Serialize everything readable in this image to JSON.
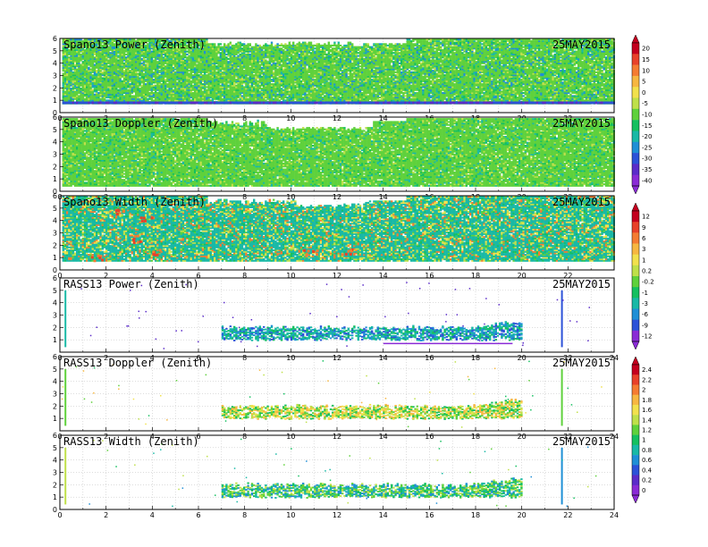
{
  "chart_data": [
    {
      "type": "heatmap",
      "title": "Spano13 Power (Zenith)",
      "date": "25MAY2015",
      "x_ticks": [
        "0",
        "2",
        "4",
        "6",
        "8",
        "10",
        "12",
        "14",
        "16",
        "18",
        "20",
        "22"
      ],
      "xlim": [
        0,
        24
      ],
      "y_ticks": [
        "0",
        "1",
        "2",
        "3",
        "4",
        "5",
        "6"
      ],
      "ylim": [
        0,
        6
      ],
      "colorscale": "power",
      "coverage": [
        [
          0.1,
          24
        ]
      ],
      "layer_top": 5.5,
      "band_y": [
        0.7,
        5.9
      ],
      "dominant": "green-cyan",
      "grid": true
    },
    {
      "type": "heatmap",
      "title": "Spano13 Doppler (Zenith)",
      "date": "25MAY2015",
      "x_ticks": [
        "0",
        "2",
        "4",
        "6",
        "8",
        "10",
        "12",
        "14",
        "16",
        "18",
        "20",
        "22"
      ],
      "xlim": [
        0,
        24
      ],
      "y_ticks": [
        "0",
        "1",
        "2",
        "3",
        "4",
        "5",
        "6"
      ],
      "ylim": [
        0,
        6
      ],
      "colorscale": "power",
      "coverage": [
        [
          0.1,
          24
        ]
      ],
      "band_y": [
        0.4,
        5.9
      ],
      "dominant": "green",
      "grid": true
    },
    {
      "type": "heatmap",
      "title": "Spano13 Width (Zenith)",
      "date": "25MAY2015",
      "x_ticks": [
        "0",
        "2",
        "4",
        "6",
        "8",
        "10",
        "12",
        "14",
        "16",
        "18",
        "20",
        "22"
      ],
      "xlim": [
        0,
        24
      ],
      "y_ticks": [
        "0",
        "1",
        "2",
        "3",
        "4",
        "5",
        "6"
      ],
      "ylim": [
        0,
        6
      ],
      "colorscale": "width",
      "coverage": [
        [
          0.1,
          24
        ]
      ],
      "band_y": [
        0.7,
        5.9
      ],
      "dominant": "cyan-green-yellow",
      "grid": true
    },
    {
      "type": "heatmap",
      "title": "RASS13 Power (Zenith)",
      "date": "25MAY2015",
      "x_ticks": [
        "0",
        "2",
        "4",
        "6",
        "8",
        "10",
        "12",
        "14",
        "16",
        "18",
        "20",
        "22",
        "24"
      ],
      "xlim": [
        0,
        24
      ],
      "y_ticks": [
        "1",
        "2",
        "3",
        "4",
        "5",
        "6"
      ],
      "ylim": [
        0,
        6
      ],
      "colorscale": "width",
      "coverage": [
        [
          7.0,
          20.0
        ]
      ],
      "band_y": [
        0.7,
        2.1
      ],
      "spikes": [
        0.2,
        21.7
      ],
      "dominant": "cyan-blue",
      "grid": true
    },
    {
      "type": "heatmap",
      "title": "RASS13 Doppler (Zenith)",
      "date": "25MAY2015",
      "x_ticks": [
        "0",
        "2",
        "4",
        "6",
        "8",
        "10",
        "12",
        "14",
        "16",
        "18",
        "20",
        "22",
        "24"
      ],
      "xlim": [
        0,
        24
      ],
      "y_ticks": [
        "1",
        "2",
        "3",
        "4",
        "5",
        "6"
      ],
      "ylim": [
        0,
        6
      ],
      "colorscale": "rass",
      "coverage": [
        [
          7.0,
          20.0
        ]
      ],
      "band_y": [
        0.7,
        2.1
      ],
      "spikes": [
        0.2,
        21.7
      ],
      "dominant": "yellow-green",
      "grid": true
    },
    {
      "type": "heatmap",
      "title": "RASS13 Width (Zenith)",
      "date": "25MAY2015",
      "x_ticks": [
        "0",
        "2",
        "4",
        "6",
        "8",
        "10",
        "12",
        "14",
        "16",
        "18",
        "20",
        "22",
        "24"
      ],
      "xlim": [
        0,
        24
      ],
      "y_ticks": [
        "0",
        "1",
        "2",
        "3",
        "4",
        "5",
        "6"
      ],
      "ylim": [
        0,
        6
      ],
      "colorscale": "rass",
      "coverage": [
        [
          7.0,
          20.0
        ]
      ],
      "band_y": [
        0.7,
        2.1
      ],
      "spikes": [
        0.2,
        21.7
      ],
      "dominant": "green-cyan",
      "grid": true
    }
  ],
  "colorbars": [
    {
      "labels": [
        "20",
        "15",
        "10",
        "5",
        "0",
        "-5",
        "-10",
        "-15",
        "-20",
        "-25",
        "-30",
        "-35",
        "-40"
      ],
      "colors": [
        "#c4001e",
        "#e8412a",
        "#f57c32",
        "#f7b741",
        "#f2e14d",
        "#bfe04a",
        "#5fd13c",
        "#15c060",
        "#19b9a6",
        "#1f8fd6",
        "#2c52d8",
        "#5b2cc9",
        "#8a2bd6"
      ]
    },
    {
      "labels": [
        "12",
        "9",
        "6",
        "3",
        "1",
        "0.2",
        "-0.2",
        "-1",
        "-3",
        "-6",
        "-9",
        "-12"
      ],
      "colors": [
        "#c4001e",
        "#e8412a",
        "#f57c32",
        "#f7b741",
        "#f2e14d",
        "#bfe04a",
        "#5fd13c",
        "#15c060",
        "#19b9a6",
        "#1f8fd6",
        "#2c52d8",
        "#8a2bd6"
      ]
    },
    {
      "labels": [
        "2.4",
        "2.2",
        "2",
        "1.8",
        "1.6",
        "1.4",
        "1.2",
        "1",
        "0.8",
        "0.6",
        "0.4",
        "0.2",
        "0"
      ],
      "colors": [
        "#c4001e",
        "#e8412a",
        "#f57c32",
        "#f7b741",
        "#f2e14d",
        "#bfe04a",
        "#5fd13c",
        "#15c060",
        "#19b9a6",
        "#1f8fd6",
        "#2c52d8",
        "#5b2cc9",
        "#8a2bd6"
      ]
    }
  ]
}
